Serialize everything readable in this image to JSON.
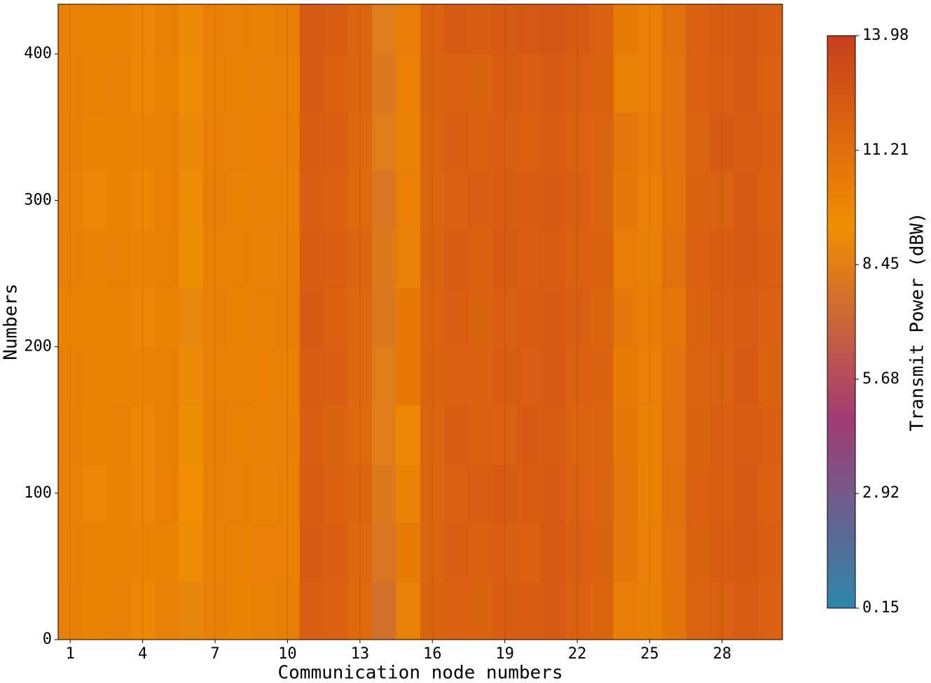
{
  "chart_data": {
    "type": "heatmap",
    "xlabel": "Communication node numbers",
    "ylabel": "Numbers",
    "colorbar_label": "Transmit Power (dBW)",
    "x": [
      1,
      2,
      3,
      4,
      5,
      6,
      7,
      8,
      9,
      10,
      11,
      12,
      13,
      14,
      15,
      16,
      17,
      18,
      19,
      20,
      21,
      22,
      23,
      24,
      25,
      26,
      27,
      28,
      29,
      30
    ],
    "y_bins": [
      0,
      40,
      80,
      120,
      160,
      200,
      240,
      280,
      320,
      360,
      400,
      434
    ],
    "values": [
      [
        10.3,
        10.0,
        10.2,
        9.8,
        10.2,
        8.8,
        10.3,
        10.0,
        10.2,
        10.4,
        12.1,
        12.0,
        11.5,
        7.6,
        10.2,
        11.9,
        12.0,
        11.9,
        12.2,
        12.2,
        12.3,
        12.0,
        11.7,
        10.4,
        10.2,
        10.9,
        11.8,
        12.0,
        12.2,
        12.0
      ],
      [
        10.2,
        10.1,
        10.0,
        10.0,
        10.1,
        9.2,
        10.2,
        10.1,
        10.3,
        10.3,
        12.3,
        12.1,
        11.6,
        8.0,
        10.5,
        11.8,
        12.1,
        12.0,
        12.1,
        12.0,
        12.4,
        12.1,
        11.9,
        10.7,
        10.3,
        11.0,
        11.9,
        12.2,
        12.3,
        12.1
      ],
      [
        10.1,
        9.9,
        10.1,
        9.9,
        10.3,
        9.4,
        10.3,
        10.2,
        10.1,
        10.2,
        12.2,
        12.0,
        11.7,
        8.2,
        10.0,
        11.7,
        12.0,
        12.1,
        12.3,
        12.2,
        12.3,
        12.0,
        11.8,
        10.8,
        10.1,
        11.1,
        12.0,
        12.1,
        12.4,
        12.0
      ],
      [
        10.3,
        10.0,
        10.2,
        9.9,
        10.2,
        9.3,
        10.4,
        10.1,
        10.2,
        10.3,
        12.1,
        11.9,
        11.5,
        8.4,
        9.8,
        11.8,
        12.2,
        12.0,
        12.0,
        12.3,
        12.2,
        11.9,
        11.8,
        10.6,
        10.0,
        11.0,
        11.9,
        12.1,
        12.2,
        12.1
      ],
      [
        10.2,
        10.1,
        10.0,
        10.0,
        10.2,
        9.1,
        10.2,
        10.2,
        10.3,
        10.2,
        12.2,
        12.1,
        11.6,
        8.3,
        10.6,
        11.9,
        12.0,
        12.0,
        12.2,
        12.1,
        12.4,
        12.0,
        11.9,
        10.5,
        10.3,
        11.0,
        11.8,
        12.0,
        12.3,
        11.9
      ],
      [
        10.0,
        10.0,
        10.1,
        9.9,
        10.1,
        8.9,
        10.3,
        10.1,
        10.2,
        10.4,
        12.3,
        12.0,
        11.6,
        8.1,
        10.6,
        11.8,
        12.1,
        11.9,
        12.1,
        12.2,
        12.3,
        12.1,
        11.7,
        10.7,
        10.4,
        10.8,
        11.9,
        12.1,
        12.2,
        12.0
      ],
      [
        10.2,
        10.1,
        10.2,
        10.0,
        10.2,
        9.3,
        10.2,
        10.2,
        10.1,
        10.3,
        12.2,
        12.1,
        11.7,
        8.2,
        10.2,
        11.9,
        12.2,
        12.0,
        12.3,
        12.1,
        12.2,
        12.0,
        11.9,
        10.4,
        10.2,
        11.1,
        12.0,
        12.2,
        12.3,
        12.1
      ],
      [
        10.1,
        9.9,
        10.0,
        9.8,
        10.3,
        9.2,
        10.4,
        10.1,
        10.2,
        10.2,
        12.1,
        12.0,
        11.5,
        8.0,
        10.3,
        11.7,
        12.0,
        12.1,
        12.2,
        12.2,
        12.3,
        12.1,
        11.8,
        10.6,
        10.3,
        10.9,
        11.9,
        12.0,
        12.4,
        12.0
      ],
      [
        10.3,
        10.0,
        10.1,
        10.0,
        10.2,
        9.0,
        10.3,
        10.2,
        10.3,
        10.3,
        12.2,
        12.1,
        11.6,
        8.3,
        10.1,
        11.8,
        12.1,
        12.0,
        12.1,
        12.0,
        12.2,
        12.0,
        11.8,
        10.8,
        10.4,
        11.0,
        11.8,
        12.3,
        12.2,
        12.1
      ],
      [
        10.2,
        10.1,
        10.2,
        9.9,
        10.1,
        9.2,
        10.2,
        10.1,
        10.2,
        10.3,
        12.3,
        12.0,
        11.7,
        8.1,
        10.3,
        11.9,
        12.0,
        11.9,
        12.2,
        12.1,
        12.3,
        12.1,
        11.9,
        10.2,
        10.3,
        11.0,
        12.0,
        12.1,
        12.3,
        12.0
      ],
      [
        10.1,
        10.0,
        10.1,
        9.9,
        10.2,
        9.1,
        10.3,
        10.2,
        10.1,
        10.4,
        12.4,
        12.2,
        11.8,
        8.3,
        10.4,
        12.0,
        12.3,
        12.2,
        12.4,
        12.5,
        12.6,
        12.3,
        12.0,
        10.5,
        10.3,
        11.1,
        12.0,
        12.2,
        12.3,
        12.1
      ]
    ],
    "xlim": [
      0.5,
      30.5
    ],
    "ylim": [
      0,
      434
    ],
    "xticks": [
      1,
      4,
      7,
      10,
      13,
      16,
      19,
      22,
      25,
      28
    ],
    "yticks": [
      0,
      100,
      200,
      300,
      400
    ],
    "clim": [
      0.15,
      13.98
    ],
    "cticks": [
      0.15,
      2.92,
      5.68,
      8.45,
      11.21,
      13.98
    ],
    "colormap": [
      "#2e86ab",
      "#a23b72",
      "#f18f01",
      "#c73e1d"
    ],
    "grid": true
  }
}
